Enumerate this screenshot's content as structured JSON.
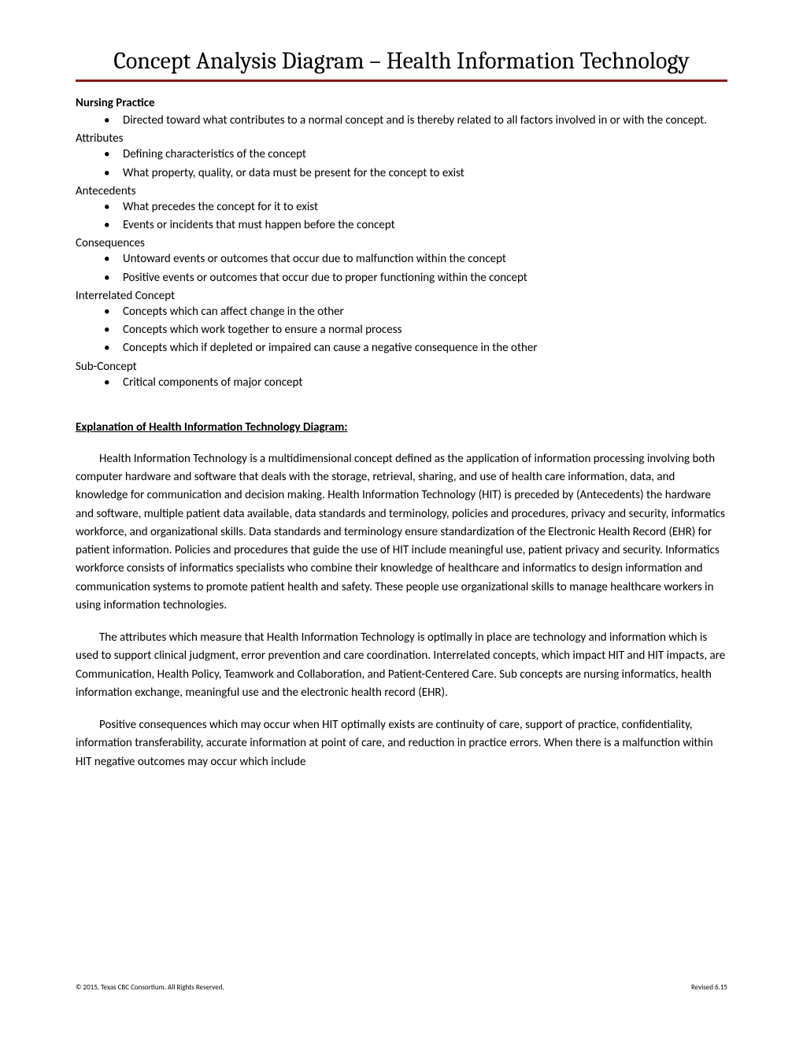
{
  "title": "Concept Analysis Diagram – Health Information Technology",
  "sections": [
    {
      "label": "Nursing Practice",
      "bold": true,
      "items": [
        "Directed toward what contributes to a normal concept and is thereby related to all factors involved in or with the concept."
      ]
    },
    {
      "label": "Attributes",
      "bold": false,
      "items": [
        "Defining characteristics of the concept",
        "What property, quality, or data must be present for the concept to exist"
      ]
    },
    {
      "label": "Antecedents",
      "bold": false,
      "items": [
        "What precedes the concept for it to exist",
        "Events or incidents that must happen before the concept"
      ]
    },
    {
      "label": "Consequences",
      "bold": false,
      "items": [
        "Untoward events or outcomes that occur due to malfunction within the concept",
        "Positive events or outcomes that occur due to proper functioning within the concept"
      ]
    },
    {
      "label": "Interrelated Concept",
      "bold": false,
      "items": [
        "Concepts which can affect change in the other",
        "Concepts which work together to ensure a normal process",
        "Concepts which if depleted or impaired can cause a negative consequence in the other"
      ]
    },
    {
      "label": "Sub-Concept",
      "bold": false,
      "items": [
        "Critical components of major concept"
      ]
    }
  ],
  "explanation_heading": "Explanation of Health Information Technology Diagram:",
  "paragraphs": [
    "Health Information Technology is a multidimensional concept defined as the application of information processing involving both computer hardware and software that deals with the storage, retrieval, sharing, and use of health care information, data, and knowledge for communication and decision making. Health Information Technology (HIT) is preceded by (Antecedents) the hardware and software, multiple patient data available, data standards and terminology, policies and procedures, privacy and security, informatics workforce, and organizational skills. Data standards and terminology ensure standardization of the Electronic Health Record (EHR) for patient information.  Policies and procedures that guide the use of HIT include meaningful use, patient privacy and security. Informatics workforce consists of informatics specialists who combine their knowledge of healthcare and informatics to design information and communication systems to promote patient health and safety. These people use organizational skills to manage healthcare workers in using information technologies.",
    "The attributes which measure that Health Information Technology is optimally in place are technology and information which is used to support clinical judgment, error prevention and care coordination. Interrelated concepts, which impact HIT and HIT impacts, are Communication, Health Policy, Teamwork and Collaboration, and Patient-Centered Care. Sub concepts are nursing informatics, health information exchange, meaningful use and the electronic health record (EHR).",
    "Positive consequences which may occur when HIT optimally exists are continuity of care, support of practice, confidentiality, information transferability, accurate information at point of care, and reduction in practice errors. When there is a malfunction within HIT negative outcomes may occur which include"
  ],
  "footer": {
    "left": "© 2015, Texas CBC Consortium. All Rights Reserved.",
    "right": "Revised 6.15"
  },
  "colors": {
    "rule": "#8b1a1a",
    "text": "#000000",
    "background": "#ffffff"
  }
}
